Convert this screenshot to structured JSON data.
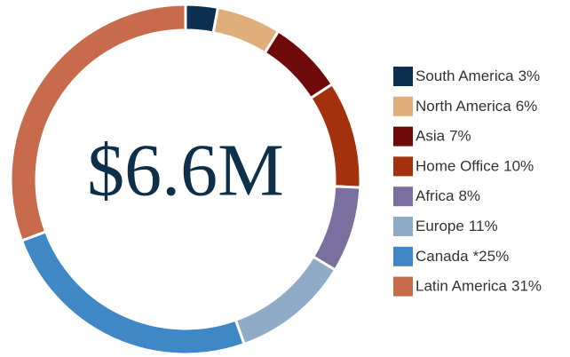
{
  "chart_data": {
    "type": "donut",
    "center_text": "$6.6M",
    "categories": [
      "South America",
      "North America",
      "Asia",
      "Home Office",
      "Africa",
      "Europe",
      "Canada",
      "Latin America"
    ],
    "values": [
      3,
      6,
      7,
      10,
      8,
      11,
      25,
      31
    ],
    "value_labels": [
      "3%",
      "6%",
      "7%",
      "10%",
      "8%",
      "11%",
      "*25%",
      "31%"
    ],
    "colors": [
      "#0b2f4e",
      "#e0ae7a",
      "#6e0a0a",
      "#a3310e",
      "#7b6fa0",
      "#8fabc7",
      "#3f87c5",
      "#c86a4c"
    ],
    "legend": "right"
  }
}
